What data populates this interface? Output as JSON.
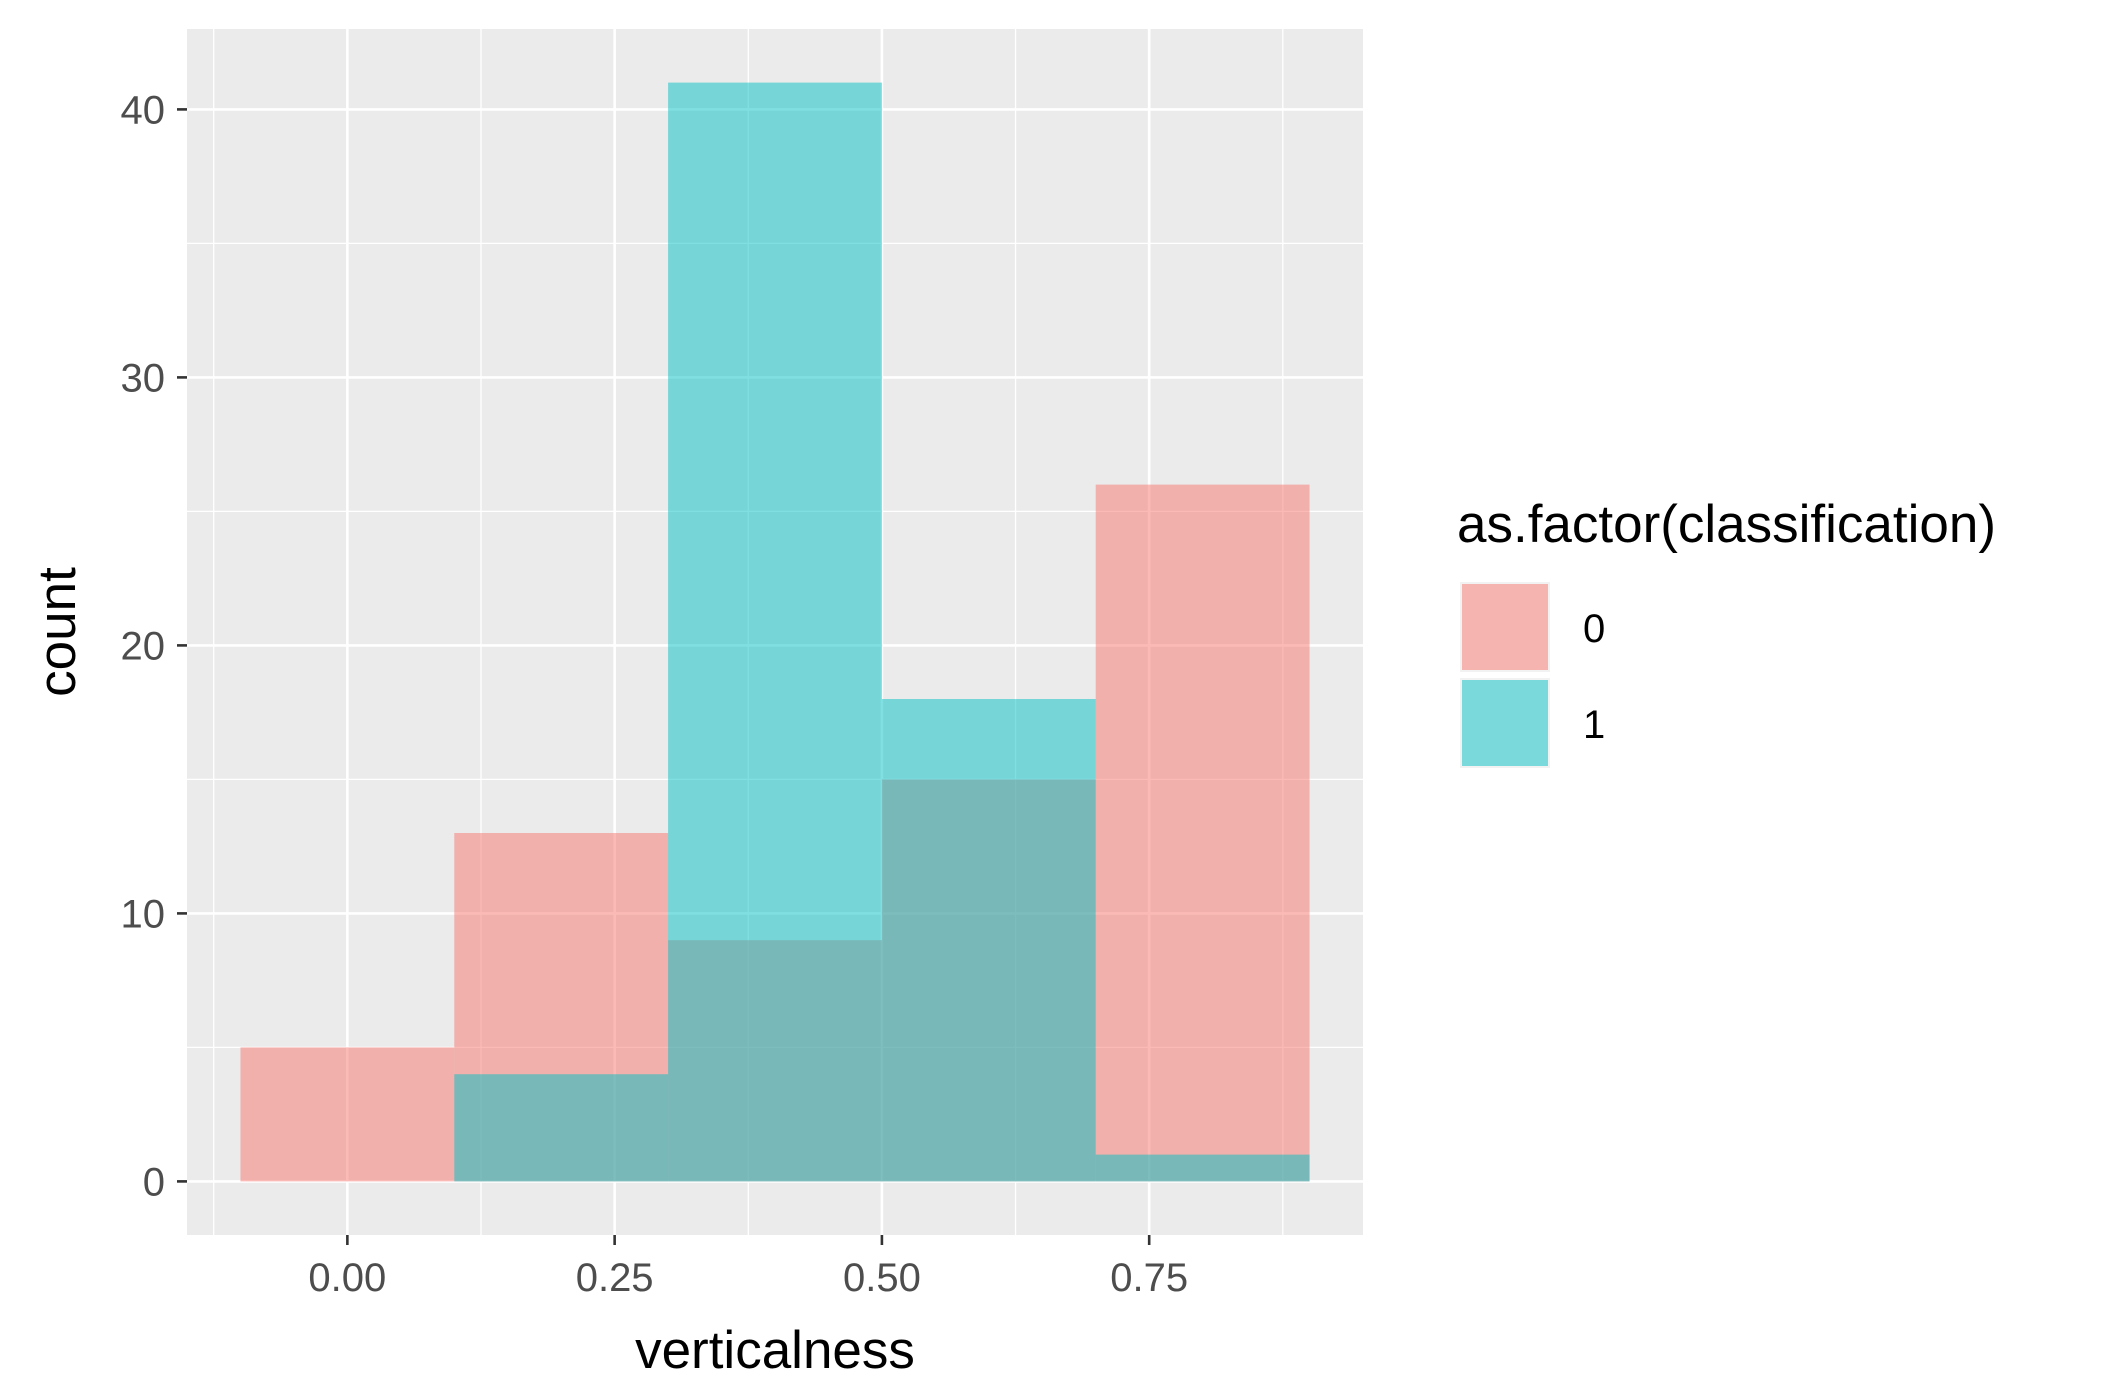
{
  "chart_data": {
    "type": "bar",
    "subtype": "overlapping-histogram",
    "xlabel": "verticalness",
    "ylabel": "count",
    "xlim": [
      -0.15,
      0.95
    ],
    "ylim": [
      -2.0,
      43.0
    ],
    "x_ticks": [
      0.0,
      0.25,
      0.5,
      0.75
    ],
    "x_tick_labels": [
      "0.00",
      "0.25",
      "0.50",
      "0.75"
    ],
    "y_ticks": [
      0,
      10,
      20,
      30,
      40
    ],
    "y_tick_labels": [
      "0",
      "10",
      "20",
      "30",
      "40"
    ],
    "bin_edges": [
      -0.1,
      0.1,
      0.3,
      0.5,
      0.7,
      0.9
    ],
    "grid": true,
    "legend": {
      "title": "as.factor(classification)",
      "position": "right"
    },
    "series": [
      {
        "name": "0",
        "color": "#F8766D",
        "values": [
          5,
          13,
          9,
          15,
          26
        ]
      },
      {
        "name": "1",
        "color": "#00BFC4",
        "values": [
          0,
          4,
          41,
          18,
          1
        ]
      }
    ],
    "bar_opacity": 0.5,
    "panel_background": "#EBEBEB",
    "grid_color": "#FFFFFF"
  }
}
